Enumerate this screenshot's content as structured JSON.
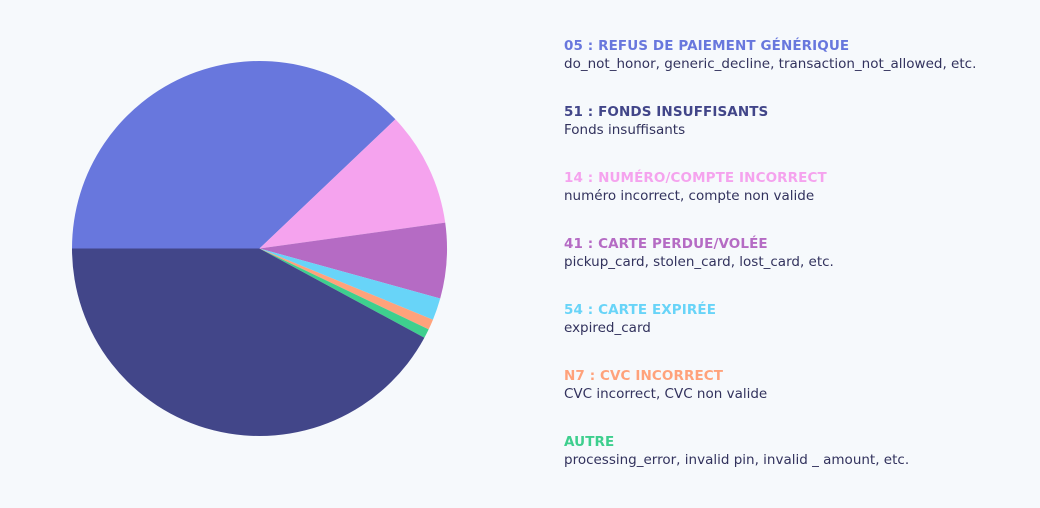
{
  "chart_data": {
    "type": "pie",
    "title": "",
    "center": [
      259.5,
      248.5
    ],
    "radius": 187.5,
    "start_angle_deg": 180,
    "direction": "clockwise",
    "order": [
      "05",
      "14",
      "41",
      "54",
      "N7",
      "AUTRE",
      "51"
    ],
    "slices": [
      {
        "code": "05",
        "label": "05 : REFUS DE PAIEMENT GÉNÉRIQUE",
        "value": 37.9,
        "color": "#6877DD"
      },
      {
        "code": "14",
        "label": "14 : NUMÉRO/COMPTE INCORRECT",
        "value": 9.9,
        "color": "#F5A3EE"
      },
      {
        "code": "41",
        "label": "41 : CARTE PERDUE/VOLÉE",
        "value": 6.5,
        "color": "#B56BC4"
      },
      {
        "code": "54",
        "label": "54 : CARTE EXPIRÉE",
        "value": 1.9,
        "color": "#68D4F8"
      },
      {
        "code": "N7",
        "label": "N7 : CVC INCORRECT",
        "value": 0.9,
        "color": "#FFA27B"
      },
      {
        "code": "AUTRE",
        "label": "AUTRE",
        "value": 0.8,
        "color": "#3ECF8E"
      },
      {
        "code": "51",
        "label": "51 : FONDS INSUFFISANTS",
        "value": 42.1,
        "color": "#424689"
      }
    ],
    "legend_position": "right"
  },
  "legend": {
    "items": [
      {
        "title": "05 : REFUS DE PAIEMENT GÉNÉRIQUE",
        "desc": "do_not_honor, generic_decline, transaction_not_allowed, etc.",
        "color": "#6877DD"
      },
      {
        "title": "51 : FONDS INSUFFISANTS",
        "desc": "Fonds insuffisants",
        "color": "#424689"
      },
      {
        "title": "14 : NUMÉRO/COMPTE INCORRECT",
        "desc": "numéro incorrect, compte non valide",
        "color": "#F5A3EE"
      },
      {
        "title": "41 : CARTE PERDUE/VOLÉE",
        "desc": "pickup_card, stolen_card, lost_card, etc.",
        "color": "#B56BC4"
      },
      {
        "title": "54 : CARTE EXPIRÉE",
        "desc": "expired_card",
        "color": "#68D4F8"
      },
      {
        "title": "N7 : CVC INCORRECT",
        "desc": "CVC incorrect, CVC non valide",
        "color": "#FFA27B"
      },
      {
        "title": "AUTRE",
        "desc": "processing_error, invalid pin, invalid _ amount, etc.",
        "color": "#3ECF8E"
      }
    ]
  },
  "colors": {
    "background": "#F6F9FC",
    "description_text": "#32325D"
  }
}
